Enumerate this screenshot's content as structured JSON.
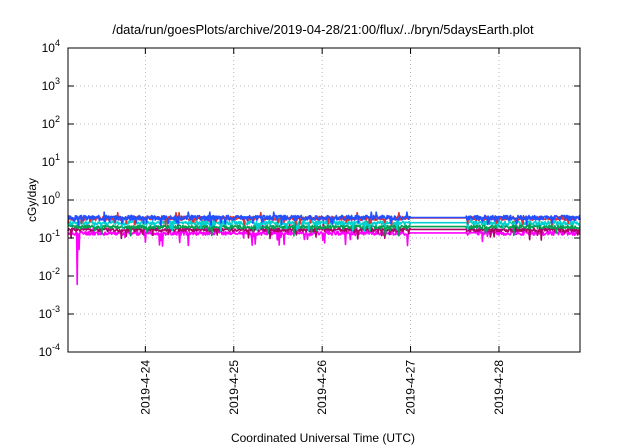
{
  "chart_data": {
    "type": "line",
    "title": "/data/run/goesPlots/archive/2019-04-28/21:00/flux/../bryn/5daysEarth.plot",
    "xlabel": "Coordinated Universal Time (UTC)",
    "ylabel": "cGy/day",
    "yscale": "log",
    "ylim": [
      0.0001,
      10000
    ],
    "xlim": [
      "2019-04-23 03:00",
      "2019-04-28 22:00"
    ],
    "yticks": [
      {
        "base": "10",
        "exp": "-4",
        "value": 0.0001
      },
      {
        "base": "10",
        "exp": "-3",
        "value": 0.001
      },
      {
        "base": "10",
        "exp": "-2",
        "value": 0.01
      },
      {
        "base": "10",
        "exp": "-1",
        "value": 0.1
      },
      {
        "base": "10",
        "exp": "0",
        "value": 1
      },
      {
        "base": "10",
        "exp": "1",
        "value": 10
      },
      {
        "base": "10",
        "exp": "2",
        "value": 100
      },
      {
        "base": "10",
        "exp": "3",
        "value": 1000
      },
      {
        "base": "10",
        "exp": "4",
        "value": 10000
      }
    ],
    "xticks": [
      {
        "label": "2019-4-24",
        "value": "2019-04-24 00:00"
      },
      {
        "label": "2019-4-25",
        "value": "2019-04-25 00:00"
      },
      {
        "label": "2019-4-26",
        "value": "2019-04-26 00:00"
      },
      {
        "label": "2019-4-27",
        "value": "2019-04-27 00:00"
      },
      {
        "label": "2019-4-28",
        "value": "2019-04-28 00:00"
      }
    ],
    "grid": true,
    "gap": [
      "2019-04-27 00:00",
      "2019-04-27 15:00"
    ],
    "series": [
      {
        "color": "#ff00ff",
        "base": 0.13,
        "amp": 0.25,
        "dipDepth": 0.55,
        "seed": 11,
        "special_dips": [
          {
            "x": "2019-04-23 05:30",
            "y": 0.006
          },
          {
            "x": "2019-04-23 06:00",
            "y": 0.05
          }
        ]
      },
      {
        "color": "#b0006a",
        "base": 0.16,
        "amp": 0.22,
        "dipDepth": 0.45,
        "seed": 23
      },
      {
        "color": "#00a050",
        "base": 0.19,
        "amp": 0.22,
        "dipDepth": 0.42,
        "seed": 37
      },
      {
        "color": "#00d0d0",
        "base": 0.24,
        "amp": 0.25,
        "dipDepth": 0.4,
        "seed": 41
      },
      {
        "color": "#e03030",
        "base": 0.32,
        "amp": 0.25,
        "dipDepth": 0.35,
        "seed": 53
      },
      {
        "color": "#2050ff",
        "base": 0.33,
        "amp": 0.3,
        "dipDepth": 0.35,
        "seed": 67
      }
    ]
  }
}
